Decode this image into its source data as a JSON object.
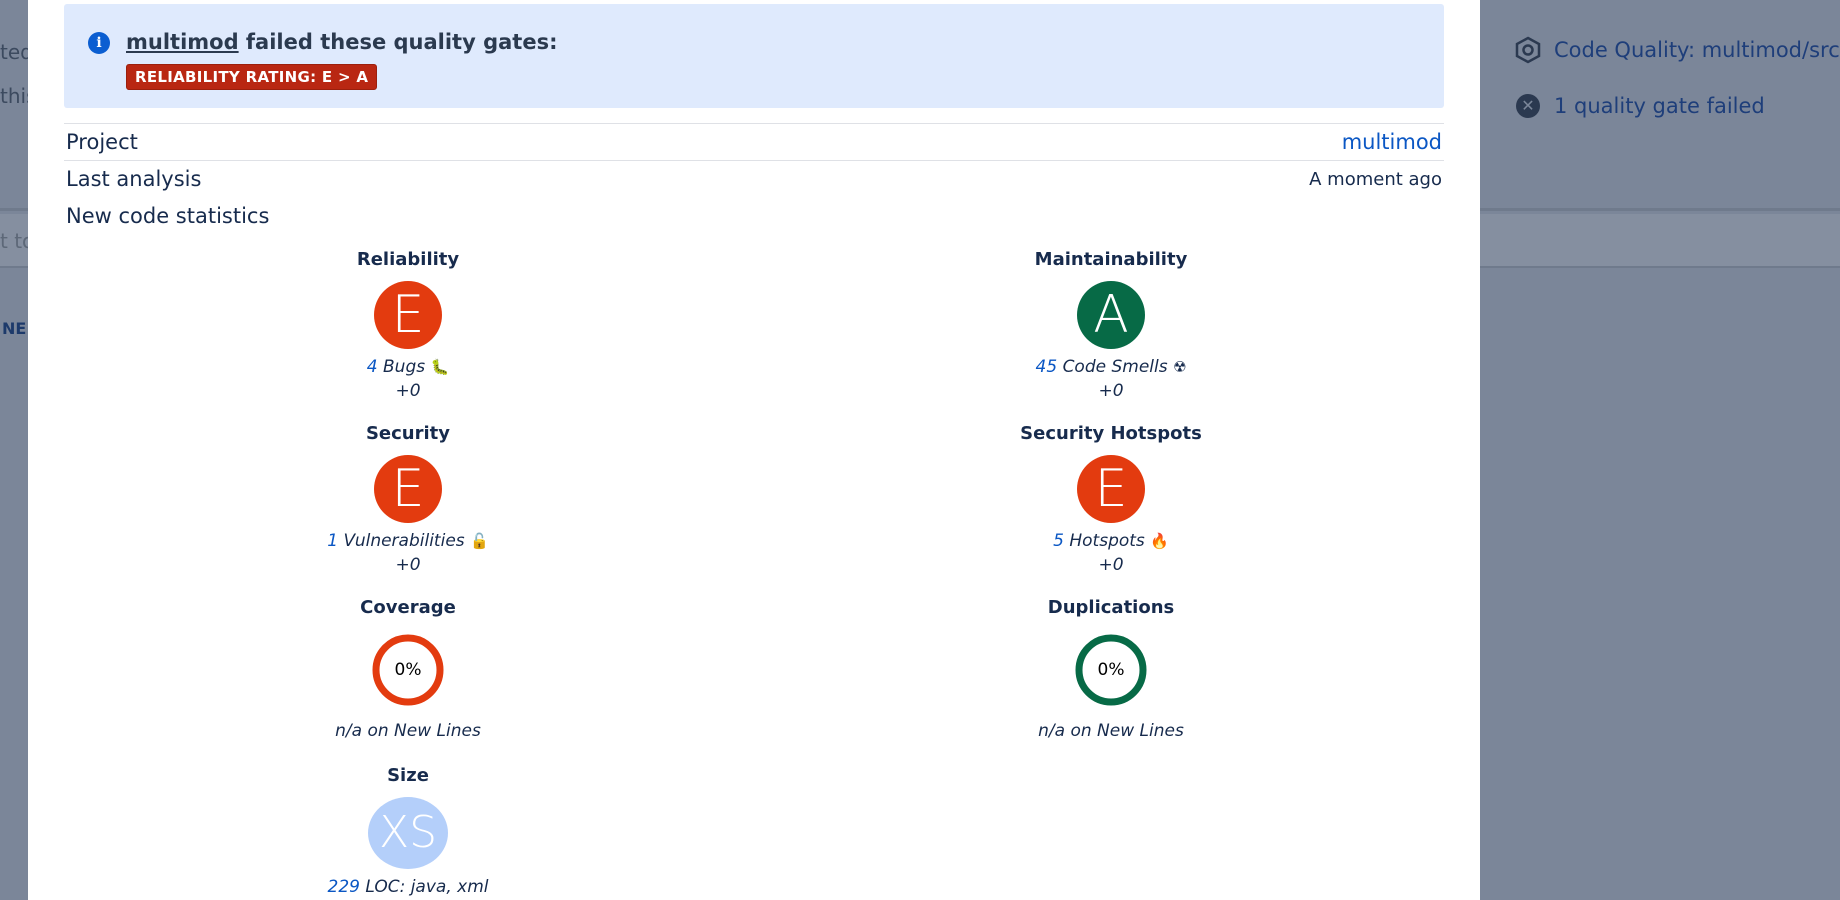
{
  "background": {
    "left_fragments": [
      "ted",
      "this"
    ],
    "field_placeholder_fragment": "t to",
    "left_label_fragment": "NE",
    "right_items": [
      {
        "icon": "hexagon-icon",
        "label": "Code Quality: multimod/src"
      },
      {
        "icon": "x-circle-icon",
        "label": "1 quality gate failed"
      }
    ]
  },
  "banner": {
    "project": "multimod",
    "message_rest": " failed these quality gates:",
    "badge": "RELIABILITY RATING: E > A"
  },
  "info": {
    "project_label": "Project",
    "project_value": "multimod",
    "analysis_label": "Last analysis",
    "analysis_value": "A moment ago",
    "stats_title": "New code statistics"
  },
  "metrics": {
    "reliability": {
      "title": "Reliability",
      "rating": "E",
      "count": "4",
      "label": "Bugs",
      "emoji": "🐛",
      "delta": "+0"
    },
    "maintainability": {
      "title": "Maintainability",
      "rating": "A",
      "count": "45",
      "label": "Code Smells",
      "emoji": "☢",
      "delta": "+0"
    },
    "security": {
      "title": "Security",
      "rating": "E",
      "count": "1",
      "label": "Vulnerabilities",
      "emoji": "🔓",
      "delta": "+0"
    },
    "hotspots": {
      "title": "Security Hotspots",
      "rating": "E",
      "count": "5",
      "label": "Hotspots",
      "emoji": "🔥",
      "delta": "+0"
    },
    "coverage": {
      "title": "Coverage",
      "percent": "0%",
      "caption": "n/a on New Lines",
      "color": "#e33b0f"
    },
    "duplications": {
      "title": "Duplications",
      "percent": "0%",
      "caption": "n/a on New Lines",
      "color": "#076a46"
    },
    "size": {
      "title": "Size",
      "rating": "XS",
      "count": "229",
      "label": "LOC: java, xml"
    }
  },
  "colors": {
    "rating_e": "#e33b0f",
    "rating_a": "#076a46",
    "rating_xs": "#b4cffa",
    "link": "#0b57c4",
    "banner_bg": "#dfeafd",
    "badge_bg": "#b92712"
  }
}
